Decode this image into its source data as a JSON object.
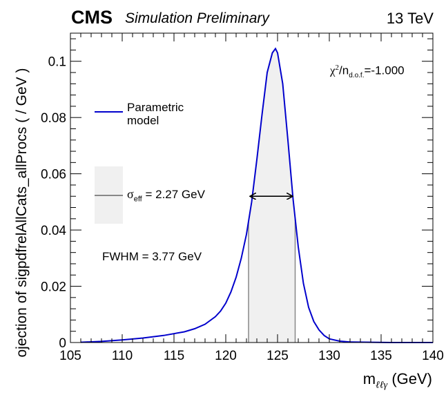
{
  "header": {
    "experiment": "CMS",
    "status": "Simulation Preliminary",
    "energy": "13 TeV"
  },
  "annotations": {
    "chi2_symbol": "χ",
    "chi2_sup": "2",
    "chi2_ndof": "/n",
    "chi2_sub": "d.o.f.",
    "chi2_value": "=-1.000",
    "sigma_symbol": "σ",
    "sigma_sub": "eff",
    "sigma_value": " = 2.27 GeV",
    "fwhm": "FWHM = 3.77 GeV"
  },
  "legend": {
    "entry_line1": "Parametric",
    "entry_line2": "model"
  },
  "axes": {
    "x_label_main": "m",
    "x_label_sub": "ℓℓγ",
    "x_label_unit": "  (GeV)",
    "y_label": "ojection of sigpdfrelAllCats_allProcs ( / GeV )"
  },
  "colors": {
    "curve": "#0000cc",
    "band_fill": "#f0f0f0",
    "band_edge": "#888888",
    "frame": "#000000"
  },
  "chart_data": {
    "type": "line",
    "xlim": [
      105,
      140
    ],
    "ylim": [
      0,
      0.11
    ],
    "x_ticks": [
      105,
      110,
      115,
      120,
      125,
      130,
      135,
      140
    ],
    "y_ticks": [
      0,
      0.02,
      0.04,
      0.06,
      0.08,
      0.1
    ],
    "y_tick_labels": [
      "0",
      "0.02",
      "0.04",
      "0.06",
      "0.08",
      "0.1"
    ],
    "series": [
      {
        "name": "Parametric model",
        "x": [
          106.0,
          108.0,
          110.0,
          112.0,
          114.0,
          116.0,
          117.0,
          118.0,
          119.0,
          119.5,
          120.0,
          120.5,
          121.0,
          121.5,
          122.0,
          122.5,
          123.0,
          123.5,
          124.0,
          124.5,
          124.8,
          125.0,
          125.5,
          126.0,
          126.5,
          127.0,
          127.5,
          128.0,
          128.5,
          129.0,
          129.5,
          130.0,
          131.0,
          132.0,
          134.0,
          136.0,
          138.0,
          140.0
        ],
        "y": [
          0.0001,
          0.0004,
          0.0009,
          0.0016,
          0.0025,
          0.0038,
          0.0049,
          0.0065,
          0.0092,
          0.0112,
          0.014,
          0.018,
          0.0232,
          0.03,
          0.0385,
          0.05,
          0.065,
          0.081,
          0.096,
          0.103,
          0.1045,
          0.103,
          0.092,
          0.072,
          0.051,
          0.034,
          0.021,
          0.0125,
          0.0075,
          0.0045,
          0.0025,
          0.0013,
          0.0005,
          0.0002,
          0.0001,
          0.0,
          0.0,
          0.0
        ]
      }
    ],
    "sigma_eff_band": [
      122.2,
      126.7
    ],
    "fwhm_arrow": {
      "x_from": 122.4,
      "x_to": 126.4,
      "y": 0.052
    }
  }
}
